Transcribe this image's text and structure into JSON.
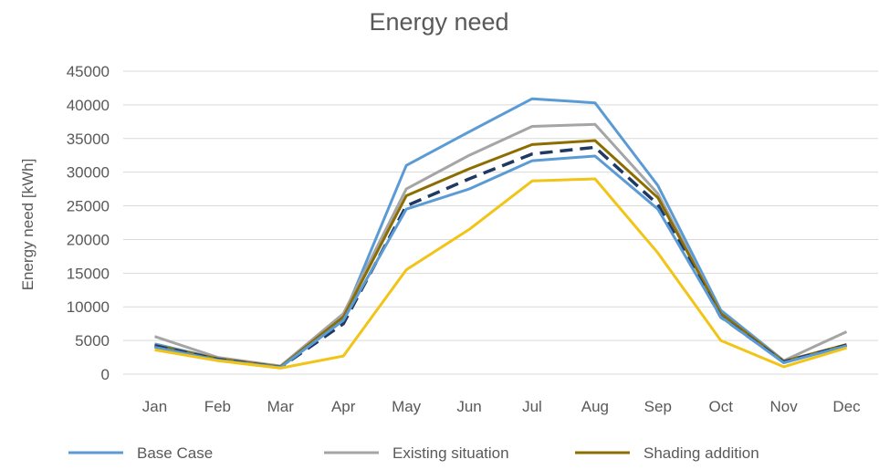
{
  "chart_data": {
    "type": "line",
    "title": "Energy need",
    "xlabel": "",
    "ylabel": "Energy need [kWh]",
    "categories": [
      "Jan",
      "Feb",
      "Mar",
      "Apr",
      "May",
      "Jun",
      "Jul",
      "Aug",
      "Sep",
      "Oct",
      "Nov",
      "Dec"
    ],
    "ylim": [
      0,
      45000
    ],
    "yticks": [
      "0",
      "5000",
      "10000",
      "15000",
      "20000",
      "25000",
      "30000",
      "35000",
      "40000",
      "45000"
    ],
    "grid": true,
    "legend_position": "bottom",
    "series": [
      {
        "name": "Base Case",
        "color": "#5b9bd5",
        "dash": "solid",
        "values": [
          4500,
          2300,
          1200,
          8500,
          31000,
          36000,
          40900,
          40300,
          28000,
          9500,
          2000,
          4200
        ]
      },
      {
        "name": "Existing situation",
        "color": "#a5a5a5",
        "dash": "solid",
        "values": [
          5600,
          2500,
          1200,
          9000,
          27500,
          32500,
          36800,
          37100,
          26800,
          9000,
          2000,
          6300
        ]
      },
      {
        "name": "Shading addition",
        "color": "#8c6d00",
        "dash": "solid",
        "values": [
          4300,
          2300,
          1100,
          8500,
          26500,
          30500,
          34100,
          34700,
          26200,
          9000,
          1900,
          4400
        ]
      },
      {
        "color": "#1f3864",
        "dash": "dashed",
        "values": [
          4200,
          2200,
          1000,
          7500,
          25000,
          29000,
          32700,
          33700,
          25200,
          8500,
          1800,
          4300
        ]
      },
      {
        "color": "#5b9bd5",
        "dash": "solid",
        "values": [
          4000,
          2100,
          1000,
          8000,
          24500,
          27500,
          31700,
          32400,
          24500,
          8500,
          1700,
          4200
        ]
      },
      {
        "color": "#f2c417",
        "dash": "solid",
        "values": [
          3600,
          2000,
          900,
          2700,
          15500,
          21500,
          28700,
          29000,
          18000,
          5000,
          1100,
          3900
        ]
      }
    ]
  }
}
